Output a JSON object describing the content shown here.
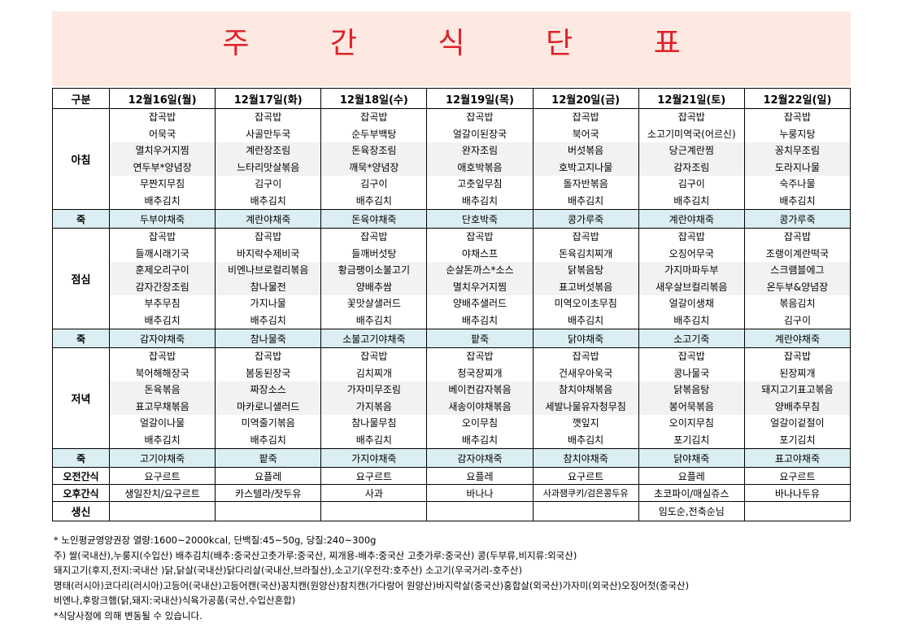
{
  "title": "주 간 식 단 표",
  "header": {
    "category": "구분",
    "days": [
      "12월16일(월)",
      "12월17일(화)",
      "12월18일(수)",
      "12월19일(목)",
      "12월20일(금)",
      "12월21일(토)",
      "12월22일(일)"
    ]
  },
  "breakfast": {
    "label": "아침",
    "days": [
      [
        "잡곡밥",
        "어묵국",
        "멸치우거지찜",
        "연두부*양념장",
        "무짠지무침",
        "배추김치"
      ],
      [
        "잡곡밥",
        "사골만두국",
        "계란장조림",
        "느타리맛살볶음",
        "김구이",
        "배추김치"
      ],
      [
        "잡곡밥",
        "순두부백탕",
        "돈육장조림",
        "깨묵*양념장",
        "김구이",
        "배추김치"
      ],
      [
        "잡곡밥",
        "얼갈이된장국",
        "완자조림",
        "애호박볶음",
        "고춧잎무침",
        "배추김치"
      ],
      [
        "잡곡밥",
        "북어국",
        "버섯볶음",
        "호박고지나물",
        "돌자반볶음",
        "배추김치"
      ],
      [
        "잡곡밥",
        "소고기미역국(어르신)",
        "당근계란찜",
        "감자조림",
        "김구이",
        "배추김치"
      ],
      [
        "잡곡밥",
        "누룽지탕",
        "꽁치무조림",
        "도라지나물",
        "숙주나물",
        "배추김치"
      ]
    ]
  },
  "porridge1": {
    "label": "죽",
    "days": [
      "두부야채죽",
      "계란야채죽",
      "돈육야채죽",
      "단호박죽",
      "콩가루죽",
      "계란야채죽",
      "콩가루죽"
    ]
  },
  "lunch": {
    "label": "점심",
    "days": [
      [
        "잡곡밥",
        "들깨시래기국",
        "훈제오리구이",
        "감자간장조림",
        "부추무침",
        "배추김치"
      ],
      [
        "잡곡밥",
        "바지락수제비국",
        "비엔나브로컬리볶음",
        "참나물전",
        "가지나물",
        "배추김치"
      ],
      [
        "잡곡밥",
        "들깨버섯탕",
        "황금팽이소불고기",
        "양배추쌈",
        "꽃맛살샐러드",
        "배추김치"
      ],
      [
        "잡곡밥",
        "야채스프",
        "순살돈까스*소스",
        "멸치우거지찜",
        "양배추샐러드",
        "배추김치"
      ],
      [
        "잡곡밥",
        "돈육김치찌개",
        "닭볶음탕",
        "표고버섯볶음",
        "미역오이초무침",
        "배추김치"
      ],
      [
        "잡곡밥",
        "오징어무국",
        "가지마파두부",
        "새우살브컬리볶음",
        "얼갈이생채",
        "배추김치"
      ],
      [
        "잡곡밥",
        "조랭이계란떡국",
        "스크램블에그",
        "온두부&양념장",
        "볶음김치",
        "김구이"
      ]
    ]
  },
  "porridge2": {
    "label": "죽",
    "days": [
      "감자야채죽",
      "참나물죽",
      "소불고기야채죽",
      "팥죽",
      "닭야채죽",
      "소고기죽",
      "계란야채죽"
    ]
  },
  "dinner": {
    "label": "저녁",
    "days": [
      [
        "잡곡밥",
        "북어해해장국",
        "돈육볶음",
        "표고무채볶음",
        "얼갈이나물",
        "배추김치"
      ],
      [
        "잡곡밥",
        "봄동된장국",
        "짜장소스",
        "마카로니샐러드",
        "미역줄기볶음",
        "배추김치"
      ],
      [
        "잡곡밥",
        "김치찌개",
        "가자미무조림",
        "가지볶음",
        "참나물무침",
        "배추김치"
      ],
      [
        "잡곡밥",
        "청국장찌개",
        "베이컨감자볶음",
        "새송이야채볶음",
        "오이무침",
        "배추김치"
      ],
      [
        "잡곡밥",
        "건새우아욱국",
        "참치야채볶음",
        "세발나물유자청무침",
        "깻잎지",
        "배추김치"
      ],
      [
        "잡곡밥",
        "콩나물국",
        "닭볶음탕",
        "봉어묵볶음",
        "오이지무침",
        "포기김치"
      ],
      [
        "잡곡밥",
        "된장찌개",
        "돼지고기표고볶음",
        "양배추무침",
        "얼갈이겉절이",
        "포기김치"
      ]
    ]
  },
  "porridge3": {
    "label": "죽",
    "days": [
      "고기야채죽",
      "팥죽",
      "가지야채죽",
      "감자야채죽",
      "참치야채죽",
      "닭야채죽",
      "표고야채죽"
    ]
  },
  "snack_am": {
    "label": "오전간식",
    "days": [
      "요구르트",
      "요플레",
      "요구르트",
      "요플레",
      "요구르트",
      "요플레",
      "요구르트"
    ]
  },
  "snack_pm": {
    "label": "오후간식",
    "days": [
      "생일잔치/요구르트",
      "카스텔라/잣두유",
      "사과",
      "바나나",
      "사과잼쿠키/검은콩두유",
      "초코파이/매실쥬스",
      "바나나두유"
    ]
  },
  "birthday": {
    "label": "생신",
    "days": [
      "",
      "",
      "",
      "",
      "",
      "임도순,전축순님",
      ""
    ]
  },
  "notes": [
    "* 노인평균영양권장  열량:1600~2000kcal, 단백질:45~50g, 당질:240~300g",
    "주) 쌀(국내산),누룽지(수입산) 배추김치(배추:중국산고춧가루:중국산, 찌개용-배추:중국산 고춧가루:중국산) 콩(두부류,비지류:외국산)",
    "돼지고기(후지,전지:국내산 )닭,닭살(국내산)닭다리살(국내산,브라질산),소고기(우전각:호주산) 소고기(우국거리-호주산)",
    "명태(러시아)코다리(러시아)고등어(국내산)고등어캔(국산)꽁치캔(원양산)참치캔(가다랑어 원양산)바지락살(중국산)홍합살(외국산)가자미(외국산)오징어젓(중국산)",
    "비엔나,후랑크햄(닭,돼지:국내산)식육가공품(국산,수입산혼합)",
    "*식당사정에 의해 변동될 수 있습니다."
  ]
}
